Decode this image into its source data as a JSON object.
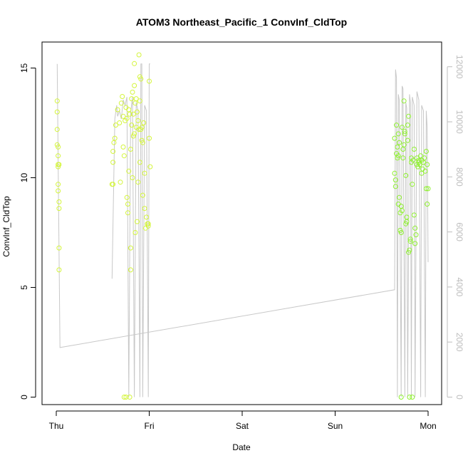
{
  "chart_data": {
    "type": "scatter",
    "title": "ATOM3 Northeast_Pacific_1 ConvInf_CldTop",
    "xlabel": "Date",
    "ylabel": "ConvInf_CldTop",
    "x_ticks": [
      "Thu",
      "Fri",
      "Sat",
      "Sun",
      "Mon"
    ],
    "x_range_days": [
      0,
      4
    ],
    "ylim": [
      0,
      15.6
    ],
    "y_ticks": [
      0,
      5,
      10,
      15
    ],
    "y2lim": [
      0,
      12500
    ],
    "y2_ticks": [
      0,
      2000,
      4000,
      6000,
      8000,
      10000,
      12000
    ],
    "grid": false,
    "colors": {
      "points_early": "#d4f53c",
      "points_late": "#8ff030",
      "line": "#c8c8c8",
      "right_axis": "#bdbdbd"
    },
    "series": [
      {
        "axis": "left",
        "style": "points",
        "x": [
          0.01,
          0.01,
          0.01,
          0.01,
          0.02,
          0.02,
          0.02,
          0.02,
          0.02,
          0.02,
          0.03,
          0.03,
          0.03,
          0.03,
          0.03,
          0.6,
          0.61,
          0.61,
          0.61,
          0.62,
          0.63,
          0.64,
          0.66,
          0.68,
          0.69,
          0.7,
          0.71,
          0.72,
          0.72,
          0.73,
          0.73,
          0.74,
          0.75,
          0.75,
          0.76,
          0.76,
          0.77,
          0.77,
          0.78,
          0.78,
          0.79,
          0.79,
          0.8,
          0.8,
          0.8,
          0.81,
          0.81,
          0.82,
          0.82,
          0.83,
          0.83,
          0.84,
          0.84,
          0.84,
          0.85,
          0.85,
          0.86,
          0.86,
          0.87,
          0.87,
          0.88,
          0.88,
          0.89,
          0.89,
          0.9,
          0.9,
          0.9,
          0.91,
          0.91,
          0.92,
          0.92,
          0.93,
          0.93,
          0.94,
          0.95,
          0.95,
          0.96,
          0.97,
          0.98,
          0.99,
          0.99,
          1.0,
          1.0,
          1.01,
          3.64,
          3.64,
          3.65,
          3.65,
          3.66,
          3.66,
          3.67,
          3.67,
          3.68,
          3.68,
          3.68,
          3.69,
          3.69,
          3.7,
          3.7,
          3.71,
          3.71,
          3.71,
          3.72,
          3.72,
          3.73,
          3.73,
          3.74,
          3.74,
          3.75,
          3.75,
          3.76,
          3.76,
          3.77,
          3.77,
          3.78,
          3.78,
          3.79,
          3.79,
          3.8,
          3.8,
          3.81,
          3.81,
          3.82,
          3.82,
          3.83,
          3.83,
          3.84,
          3.85,
          3.85,
          3.86,
          3.86,
          3.87,
          3.88,
          3.88,
          3.89,
          3.9,
          3.9,
          3.91,
          3.92,
          3.93,
          3.93,
          3.94,
          3.95,
          3.96,
          3.97,
          3.98,
          3.98,
          3.99,
          3.99,
          4.0
        ],
        "y": [
          13.5,
          13.0,
          12.2,
          11.5,
          11.0,
          11.4,
          10.6,
          10.5,
          9.7,
          9.4,
          8.9,
          8.6,
          6.8,
          5.8,
          10.6,
          9.7,
          9.7,
          10.7,
          11.2,
          11.6,
          11.8,
          12.4,
          13.1,
          12.5,
          9.8,
          13.4,
          13.7,
          12.8,
          11.4,
          0.0,
          11.0,
          12.6,
          13.2,
          0.0,
          12.7,
          9.1,
          8.8,
          8.4,
          10.3,
          13.1,
          12.9,
          0.0,
          6.8,
          5.8,
          11.3,
          12.4,
          13.6,
          13.9,
          10.0,
          12.9,
          11.9,
          15.2,
          12.0,
          14.2,
          13.4,
          7.5,
          12.3,
          13.6,
          8.0,
          13.0,
          9.8,
          12.6,
          15.6,
          12.2,
          14.6,
          13.5,
          10.7,
          12.2,
          14.5,
          12.3,
          11.7,
          11.6,
          9.2,
          12.5,
          10.2,
          8.6,
          7.7,
          8.2,
          7.9,
          7.9,
          7.8,
          14.4,
          11.8,
          10.5,
          11.8,
          10.2,
          9.6,
          9.9,
          11.1,
          12.4,
          10.9,
          11.4,
          11.0,
          8.8,
          12.0,
          11.6,
          9.1,
          8.4,
          7.6,
          0.0,
          7.5,
          8.7,
          8.5,
          12.3,
          11.3,
          10.9,
          11.5,
          13.5,
          12.1,
          12.0,
          10.1,
          7.9,
          8.0,
          8.2,
          11.7,
          12.4,
          12.8,
          6.6,
          6.7,
          0.0,
          7.2,
          7.1,
          10.9,
          10.7,
          0.0,
          9.7,
          10.8,
          11.3,
          8.3,
          7.0,
          7.7,
          7.4,
          10.6,
          10.9,
          10.5,
          10.8,
          10.7,
          10.6,
          11.0,
          10.2,
          10.8,
          10.4,
          10.7,
          10.9,
          10.3,
          9.5,
          11.2,
          10.6,
          8.8,
          9.5
        ]
      },
      {
        "axis": "right",
        "style": "line",
        "points": [
          [
            0.01,
            12100
          ],
          [
            0.04,
            1800
          ],
          [
            3.64,
            3900
          ],
          [
            3.65,
            11900
          ],
          [
            3.66,
            11600
          ],
          [
            3.67,
            0
          ],
          [
            3.68,
            11000
          ],
          [
            3.69,
            10800
          ],
          [
            3.71,
            0
          ],
          [
            3.72,
            11300
          ],
          [
            3.73,
            11200
          ],
          [
            3.75,
            0
          ],
          [
            3.76,
            10700
          ],
          [
            3.77,
            10500
          ],
          [
            3.78,
            0
          ],
          [
            3.8,
            11000
          ],
          [
            3.81,
            10700
          ],
          [
            3.82,
            0
          ],
          [
            3.83,
            10900
          ],
          [
            3.85,
            10600
          ],
          [
            3.86,
            0
          ],
          [
            3.88,
            11100
          ],
          [
            3.9,
            10800
          ],
          [
            3.92,
            0
          ],
          [
            3.93,
            10600
          ],
          [
            3.95,
            10400
          ],
          [
            3.97,
            0
          ],
          [
            3.98,
            10400
          ],
          [
            3.99,
            9800
          ],
          [
            4.0,
            4900
          ]
        ]
      },
      {
        "axis": "right",
        "style": "line",
        "points": [
          [
            0.6,
            4300
          ],
          [
            0.63,
            10100
          ],
          [
            0.65,
            10600
          ],
          [
            0.66,
            10200
          ],
          [
            0.68,
            10400
          ],
          [
            0.7,
            10100
          ],
          [
            0.72,
            10800
          ],
          [
            0.74,
            10600
          ],
          [
            0.76,
            10900
          ],
          [
            0.78,
            0
          ],
          [
            0.8,
            10300
          ],
          [
            0.82,
            10900
          ],
          [
            0.84,
            0
          ],
          [
            0.86,
            10700
          ],
          [
            0.88,
            10400
          ],
          [
            0.9,
            0
          ],
          [
            0.91,
            12100
          ],
          [
            0.92,
            12100
          ],
          [
            0.93,
            0
          ],
          [
            0.95,
            10600
          ],
          [
            0.97,
            10400
          ],
          [
            0.99,
            0
          ],
          [
            1.0,
            12100
          ],
          [
            1.01,
            12100
          ]
        ]
      }
    ]
  }
}
